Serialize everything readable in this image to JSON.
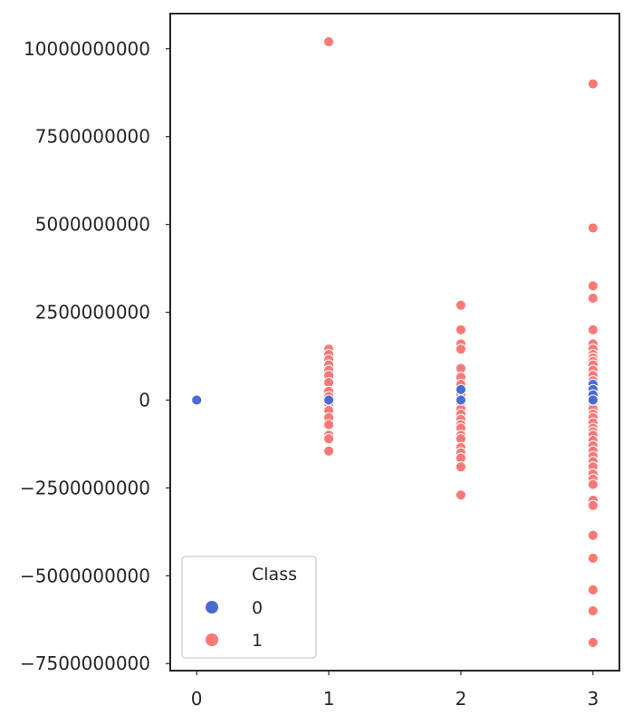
{
  "chart_data": {
    "type": "scatter",
    "title": "",
    "xlabel": "",
    "ylabel": "",
    "xlim": [
      -0.2,
      3.2
    ],
    "ylim": [
      -7700000000,
      11000000000
    ],
    "x_ticks": [
      {
        "value": 0,
        "label": "0"
      },
      {
        "value": 1,
        "label": "1"
      },
      {
        "value": 2,
        "label": "2"
      },
      {
        "value": 3,
        "label": "3"
      }
    ],
    "y_ticks": [
      {
        "value": 10000000000,
        "label": "10000000000"
      },
      {
        "value": 7500000000,
        "label": "7500000000"
      },
      {
        "value": 5000000000,
        "label": "5000000000"
      },
      {
        "value": 2500000000,
        "label": "2500000000"
      },
      {
        "value": 0,
        "label": "0"
      },
      {
        "value": -2500000000,
        "label": "−2500000000"
      },
      {
        "value": -5000000000,
        "label": "−5000000000"
      },
      {
        "value": -7500000000,
        "label": "−7500000000"
      }
    ],
    "grid": false,
    "legend": {
      "title": "Class",
      "placement": "lower-left"
    },
    "series": [
      {
        "name": "1",
        "color": "#fa7876",
        "points": [
          [
            1,
            10200000000
          ],
          [
            1,
            1450000000
          ],
          [
            1,
            1300000000
          ],
          [
            1,
            1150000000
          ],
          [
            1,
            1000000000
          ],
          [
            1,
            850000000
          ],
          [
            1,
            700000000
          ],
          [
            1,
            500000000
          ],
          [
            1,
            250000000
          ],
          [
            1,
            100000000
          ],
          [
            1,
            -100000000
          ],
          [
            1,
            -300000000
          ],
          [
            1,
            -500000000
          ],
          [
            1,
            -700000000
          ],
          [
            1,
            -1000000000
          ],
          [
            1,
            -1100000000
          ],
          [
            1,
            -1450000000
          ],
          [
            2,
            2700000000
          ],
          [
            2,
            2000000000
          ],
          [
            2,
            1600000000
          ],
          [
            2,
            1450000000
          ],
          [
            2,
            900000000
          ],
          [
            2,
            650000000
          ],
          [
            2,
            450000000
          ],
          [
            2,
            150000000
          ],
          [
            2,
            -100000000
          ],
          [
            2,
            -250000000
          ],
          [
            2,
            -400000000
          ],
          [
            2,
            -550000000
          ],
          [
            2,
            -700000000
          ],
          [
            2,
            -800000000
          ],
          [
            2,
            -1000000000
          ],
          [
            2,
            -1100000000
          ],
          [
            2,
            -1350000000
          ],
          [
            2,
            -1500000000
          ],
          [
            2,
            -1650000000
          ],
          [
            2,
            -1900000000
          ],
          [
            2,
            -2700000000
          ],
          [
            3,
            9000000000
          ],
          [
            3,
            4900000000
          ],
          [
            3,
            3250000000
          ],
          [
            3,
            2900000000
          ],
          [
            3,
            2000000000
          ],
          [
            3,
            1600000000
          ],
          [
            3,
            1450000000
          ],
          [
            3,
            1300000000
          ],
          [
            3,
            1200000000
          ],
          [
            3,
            1100000000
          ],
          [
            3,
            1000000000
          ],
          [
            3,
            850000000
          ],
          [
            3,
            700000000
          ],
          [
            3,
            550000000
          ],
          [
            3,
            400000000
          ],
          [
            3,
            100000000
          ],
          [
            3,
            -100000000
          ],
          [
            3,
            -250000000
          ],
          [
            3,
            -400000000
          ],
          [
            3,
            -500000000
          ],
          [
            3,
            -650000000
          ],
          [
            3,
            -800000000
          ],
          [
            3,
            -900000000
          ],
          [
            3,
            -1000000000
          ],
          [
            3,
            -1150000000
          ],
          [
            3,
            -1300000000
          ],
          [
            3,
            -1450000000
          ],
          [
            3,
            -1600000000
          ],
          [
            3,
            -1750000000
          ],
          [
            3,
            -1900000000
          ],
          [
            3,
            -2100000000
          ],
          [
            3,
            -2250000000
          ],
          [
            3,
            -2400000000
          ],
          [
            3,
            -2850000000
          ],
          [
            3,
            -3000000000
          ],
          [
            3,
            -3850000000
          ],
          [
            3,
            -4500000000
          ],
          [
            3,
            -5400000000
          ],
          [
            3,
            -6000000000
          ],
          [
            3,
            -6900000000
          ]
        ]
      },
      {
        "name": "0",
        "color": "#4a6bd3",
        "points": [
          [
            0,
            0
          ],
          [
            1,
            0
          ],
          [
            2,
            300000000
          ],
          [
            2,
            0
          ],
          [
            3,
            450000000
          ],
          [
            3,
            300000000
          ],
          [
            3,
            150000000
          ],
          [
            3,
            0
          ]
        ]
      }
    ]
  }
}
